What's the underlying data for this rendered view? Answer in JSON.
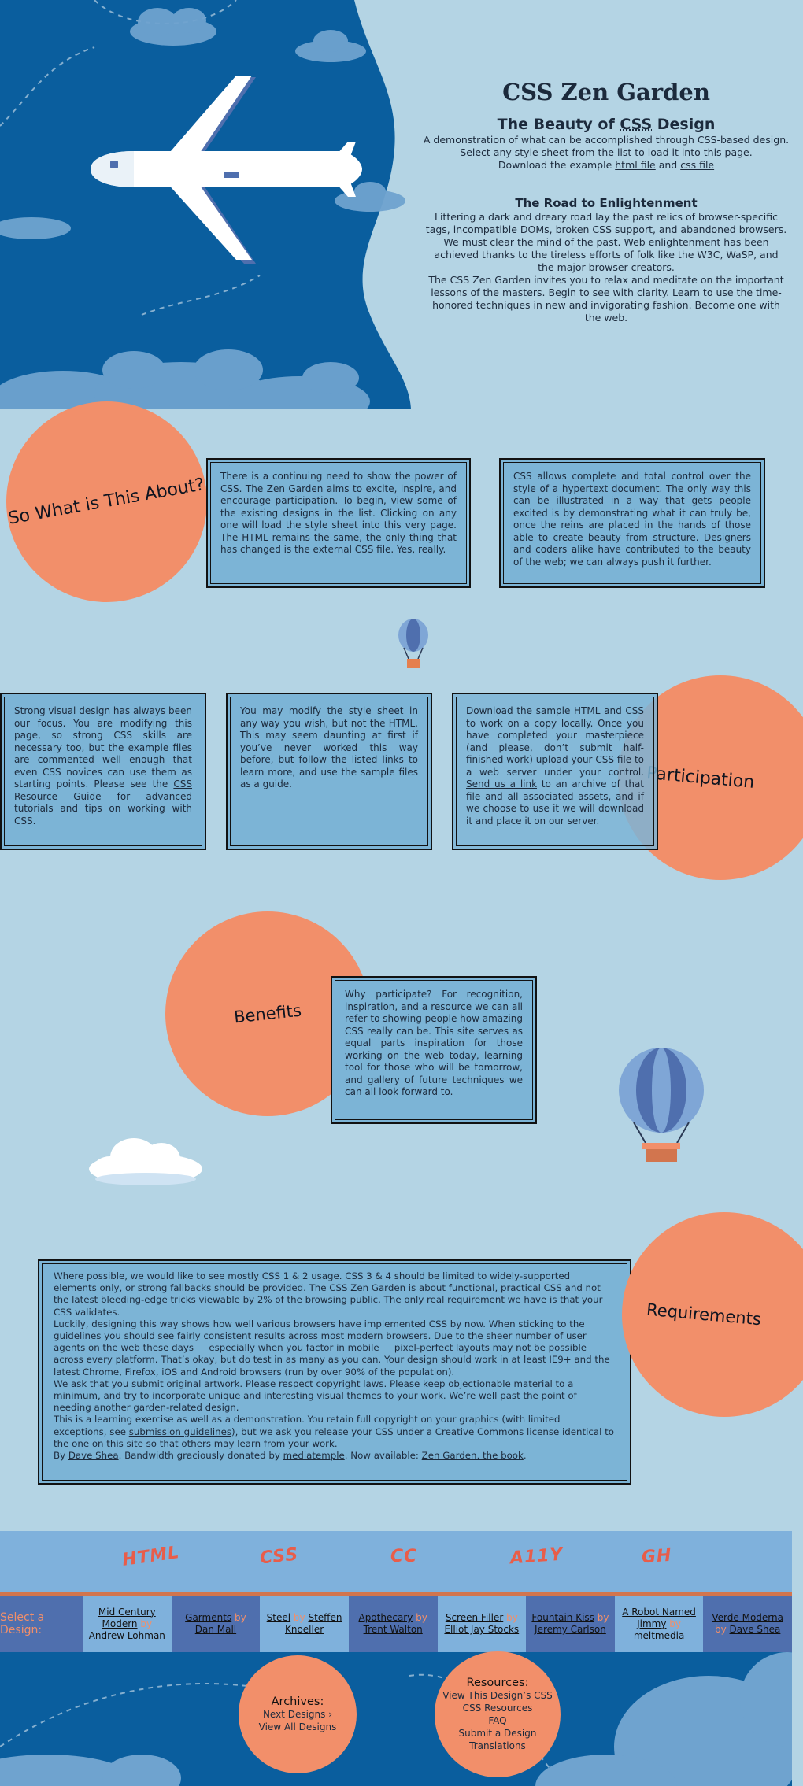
{
  "header": {
    "site_title": "CSS Zen Garden",
    "tagline_pre": "The Beauty of ",
    "tagline_abbr": "CSS",
    "tagline_post": " Design",
    "summary_p1": "A demonstration of what can be accomplished through CSS-based design.",
    "summary_p2": "Select any style sheet from the list to load it into this page.",
    "summary_p3_pre": "Download the example ",
    "summary_html_link": "html file",
    "summary_and": " and ",
    "summary_css_link": "css file"
  },
  "preamble": {
    "title": "The Road to Enlightenment",
    "p1": "Littering a dark and dreary road lay the past relics of browser-specific tags, incompatible DOMs, broken CSS support, and abandoned browsers.",
    "p2": "We must clear the mind of the past. Web enlightenment has been achieved thanks to the tireless efforts of folk like the W3C, WaSP, and the major browser creators.",
    "p3": "The CSS Zen Garden invites you to relax and meditate on the important lessons of the masters. Begin to see with clarity. Learn to use the time-honored techniques in new and invigorating fashion. Become one with the web."
  },
  "explanation": {
    "title": "So What is This About?",
    "p1": "There is a continuing need to show the power of CSS. The Zen Garden aims to excite, inspire, and encourage participation. To begin, view some of the existing designs in the list. Clicking on any one will load the style sheet into this very page. The HTML remains the same, the only thing that has changed is the external CSS file. Yes, really.",
    "p2": "CSS allows complete and total control over the style of a hypertext document. The only way this can be illustrated in a way that gets people excited is by demonstrating what it can truly be, once the reins are placed in the hands of those able to create beauty from structure. Designers and coders alike have contributed to the beauty of the web; we can always push it further."
  },
  "participation": {
    "title": "Participation",
    "p1_pre": "Strong visual design has always been our focus. You are modifying this page, so strong CSS skills are necessary too, but the example files are commented well enough that even CSS novices can use them as starting points. Please see the ",
    "p1_link": "CSS Resource Guide",
    "p1_post": " for advanced tutorials and tips on working with CSS.",
    "p2": "You may modify the style sheet in any way you wish, but not the HTML. This may seem daunting at first if you’ve never worked this way before, but follow the listed links to learn more, and use the sample files as a guide.",
    "p3_pre": "Download the sample HTML and CSS to work on a copy locally. Once you have completed your masterpiece (and please, don’t submit half-finished work) upload your CSS file to a web server under your control. ",
    "p3_link": "Send us a link",
    "p3_post": " to an archive of that file and all associated assets, and if we choose to use it we will download it and place it on our server."
  },
  "benefits": {
    "title": "Benefits",
    "p1": "Why participate? For recognition, inspiration, and a resource we can all refer to showing people how amazing CSS really can be. This site serves as equal parts inspiration for those working on the web today, learning tool for those who will be tomorrow, and gallery of future techniques we can all look forward to."
  },
  "requirements": {
    "title": "Requirements",
    "p1": "Where possible, we would like to see mostly CSS 1 & 2 usage. CSS 3 & 4 should be limited to widely-supported elements only, or strong fallbacks should be provided. The CSS Zen Garden is about functional, practical CSS and not the latest bleeding-edge tricks viewable by 2% of the browsing public. The only real requirement we have is that your CSS validates.",
    "p2": "Luckily, designing this way shows how well various browsers have implemented CSS by now. When sticking to the guidelines you should see fairly consistent results across most modern browsers. Due to the sheer number of user agents on the web these days — especially when you factor in mobile — pixel-perfect layouts may not be possible across every platform. That’s okay, but do test in as many as you can. Your design should work in at least IE9+ and the latest Chrome, Firefox, iOS and Android browsers (run by over 90% of the population).",
    "p3": "We ask that you submit original artwork. Please respect copyright laws. Please keep objectionable material to a minimum, and try to incorporate unique and interesting visual themes to your work. We’re well past the point of needing another garden-related design.",
    "p4_pre": "This is a learning exercise as well as a demonstration. You retain full copyright on your graphics (with limited exceptions, see ",
    "p4_link1": "submission guidelines",
    "p4_mid": "), but we ask you release your CSS under a Creative Commons license identical to the ",
    "p4_link2": "one on this site",
    "p4_post": " so that others may learn from your work.",
    "p5_pre": "By ",
    "p5_link1": "Dave Shea",
    "p5_mid1": ". Bandwidth graciously donated by ",
    "p5_link2": "mediatemple",
    "p5_mid2": ". Now available: ",
    "p5_link3": "Zen Garden, the book",
    "p5_post": "."
  },
  "validators": [
    "HTML",
    "CSS",
    "CC",
    "A11Y",
    "GH"
  ],
  "design_selection": {
    "label": "Select a Design:",
    "designs": [
      {
        "name": "Mid Century Modern",
        "by": "by",
        "author": "Andrew Lohman"
      },
      {
        "name": "Garments",
        "by": "by",
        "author": "Dan Mall"
      },
      {
        "name": "Steel",
        "by": "by",
        "author": "Steffen Knoeller"
      },
      {
        "name": "Apothecary",
        "by": "by",
        "author": "Trent Walton"
      },
      {
        "name": "Screen Filler",
        "by": "by",
        "author": "Elliot Jay Stocks"
      },
      {
        "name": "Fountain Kiss",
        "by": "by",
        "author": "Jeremy Carlson"
      },
      {
        "name": "A Robot Named Jimmy",
        "by": "by",
        "author": "meltmedia"
      },
      {
        "name": "Verde Moderna",
        "by": "by",
        "author": "Dave Shea"
      }
    ]
  },
  "archives": {
    "title": "Archives:",
    "next": "Next Designs ›",
    "all": "View All Designs"
  },
  "resources": {
    "title": "Resources:",
    "view_css": "View This Design’s CSS",
    "css_resources": "CSS Resources",
    "faq": "FAQ",
    "submit": "Submit a Design",
    "translations": "Translations"
  },
  "colors": {
    "background": "#b4d4e4",
    "accent_coral": "#f28f6a",
    "box_blue": "#7cb4d6",
    "hero_blue": "#0a5e9e"
  }
}
